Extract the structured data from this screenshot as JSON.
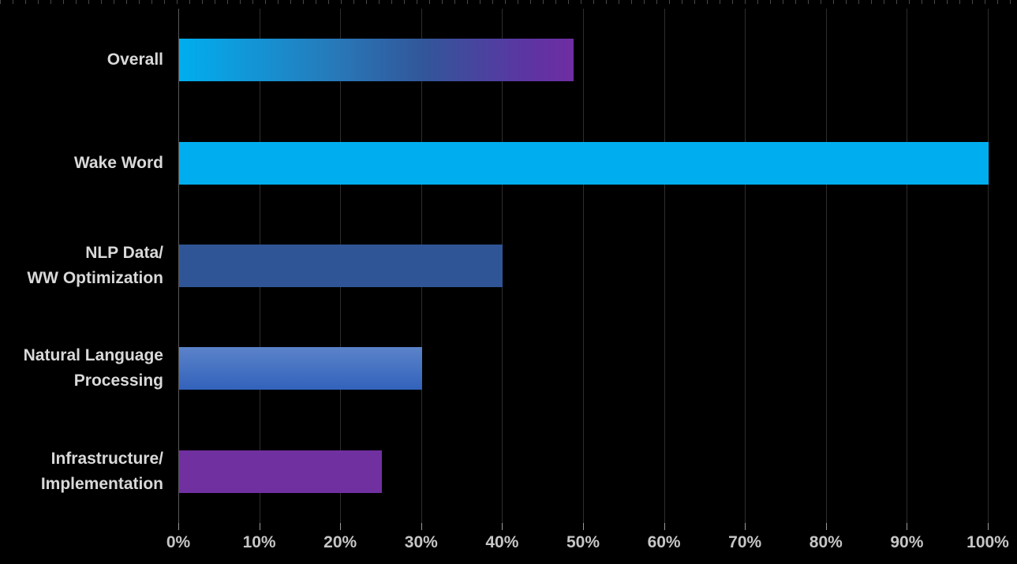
{
  "chart_data": {
    "type": "bar",
    "orientation": "horizontal",
    "title": "",
    "xlabel": "",
    "ylabel": "",
    "xlim": [
      0,
      100
    ],
    "x_tick_step": 10,
    "x_tick_labels": [
      "0%",
      "10%",
      "20%",
      "30%",
      "40%",
      "50%",
      "60%",
      "70%",
      "80%",
      "90%",
      "100%"
    ],
    "grid": true,
    "legend": false,
    "categories": [
      "Overall",
      "Wake Word",
      "NLP Data/ WW Optimization",
      "Natural Language Processing",
      "Infrastructure/ Implementation"
    ],
    "values": [
      48.75,
      100,
      40,
      30,
      25
    ],
    "bars": [
      {
        "label_lines": [
          "Overall"
        ],
        "value": 48.75,
        "fill": "linear-gradient(90deg, #00AEEF 0%, #2878B8 40%, #32569A 62%, #5C35A2 88%, #6F2DA2 100%)"
      },
      {
        "label_lines": [
          "Wake Word"
        ],
        "value": 100,
        "fill": "#00AEEF"
      },
      {
        "label_lines": [
          "NLP Data/",
          "WW Optimization"
        ],
        "value": 40,
        "fill": "#2F5597"
      },
      {
        "label_lines": [
          "Natural Language",
          "Processing"
        ],
        "value": 30,
        "fill": "linear-gradient(180deg, #5B83C9 0%, #3262BB 100%)"
      },
      {
        "label_lines": [
          "Infrastructure/",
          "Implementation"
        ],
        "value": 25,
        "fill": "#7030A0"
      }
    ],
    "colors": {
      "background": "#000000",
      "gridline": "#2E2E2E",
      "axis_line": "#5A5A5A",
      "tick_mark": "#9A9A9A",
      "tick_label": "#C6C6C6",
      "category_label": "#D9D9D9",
      "top_dashes": "#5A5A5A"
    }
  }
}
